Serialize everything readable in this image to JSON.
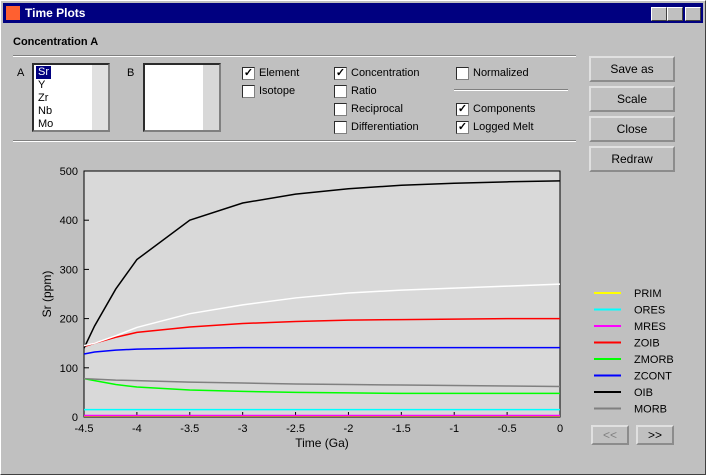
{
  "window": {
    "title": "Time Plots"
  },
  "panel": {
    "title": "Concentration A",
    "list_a": {
      "label": "A",
      "items": [
        "Sr",
        "Y",
        "Zr",
        "Nb",
        "Mo"
      ],
      "selected": 0
    },
    "list_b": {
      "label": "B",
      "items": []
    },
    "checkboxes": [
      {
        "label": "Element",
        "checked": true
      },
      {
        "label": "Isotope",
        "checked": false
      },
      {
        "label": "Concentration",
        "checked": true
      },
      {
        "label": "Ratio",
        "checked": false
      },
      {
        "label": "Reciprocal",
        "checked": false
      },
      {
        "label": "Differentiation",
        "checked": false
      },
      {
        "label": "Normalized",
        "checked": false
      },
      {
        "label": "Components",
        "checked": true
      },
      {
        "label": "Logged Melt",
        "checked": true
      }
    ],
    "buttons": [
      "Save as",
      "Scale",
      "Close",
      "Redraw"
    ],
    "nav_buttons": [
      "<<",
      ">>"
    ]
  },
  "chart_data": {
    "type": "line",
    "xlabel": "Time (Ga)",
    "ylabel": "Sr (ppm)",
    "x": [
      -4.5,
      -4.4,
      -4.2,
      -4,
      -3.5,
      -3,
      -2.5,
      -2,
      -1.5,
      -1,
      -0.5,
      0
    ],
    "xlim": [
      -4.5,
      0
    ],
    "xticks": [
      -4.5,
      -4,
      -3.5,
      -3,
      -2.5,
      -2,
      -1.5,
      -1,
      -0.5,
      0
    ],
    "ylim": [
      0,
      500
    ],
    "yticks": [
      0,
      100,
      200,
      300,
      400,
      500
    ],
    "series": [
      {
        "name": "PRIM",
        "color": "#ffff00",
        "values": [
          2,
          2,
          2,
          2,
          2,
          2,
          2,
          2,
          2,
          2,
          2,
          2
        ]
      },
      {
        "name": "ORES",
        "color": "#00ffff",
        "values": [
          15,
          15,
          15,
          15,
          15,
          15,
          15,
          15,
          15,
          15,
          15,
          15
        ]
      },
      {
        "name": "MRES",
        "color": "#ff00ff",
        "values": [
          3,
          3,
          3,
          3,
          3,
          3,
          3,
          3,
          3,
          3,
          3,
          3
        ]
      },
      {
        "name": "ZOIB",
        "color": "#ff0000",
        "values": [
          143,
          150,
          162,
          172,
          183,
          190,
          194,
          197,
          198,
          199,
          200,
          200
        ]
      },
      {
        "name": "ZMORB",
        "color": "#00ff00",
        "values": [
          78,
          74,
          66,
          61,
          55,
          52,
          50,
          49,
          48,
          48,
          48,
          48
        ]
      },
      {
        "name": "ZCONT",
        "color": "#0000ff",
        "values": [
          128,
          132,
          136,
          138,
          140,
          141,
          141,
          141,
          141,
          141,
          141,
          141
        ]
      },
      {
        "name": "OIB",
        "color": "#000000",
        "values": [
          140,
          185,
          260,
          320,
          400,
          435,
          453,
          464,
          471,
          475,
          478,
          480
        ]
      },
      {
        "name": "MORB",
        "color": "#808080",
        "values": [
          78,
          77,
          75,
          74,
          71,
          69,
          67,
          66,
          65,
          64,
          63,
          62
        ]
      },
      {
        "color": "#ffffff",
        "values": [
          145,
          150,
          165,
          182,
          210,
          228,
          242,
          252,
          258,
          262,
          266,
          270
        ]
      }
    ]
  }
}
